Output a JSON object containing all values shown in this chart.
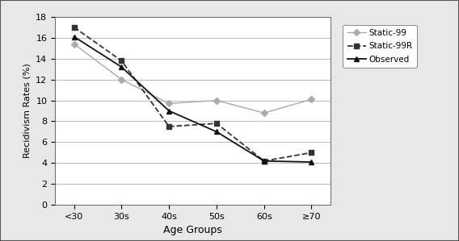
{
  "categories": [
    "<30",
    "30s",
    "40s",
    "50s",
    "60s",
    "≥70"
  ],
  "static99": [
    15.4,
    12.0,
    9.7,
    10.0,
    8.8,
    10.1
  ],
  "static99r": [
    17.0,
    13.8,
    7.5,
    7.8,
    4.2,
    5.0
  ],
  "observed": [
    16.1,
    13.2,
    9.0,
    7.0,
    4.2,
    4.1
  ],
  "ylabel": "Recidivism Rates (%)",
  "xlabel": "Age Groups",
  "ylim": [
    0,
    18
  ],
  "yticks": [
    0,
    2,
    4,
    6,
    8,
    10,
    12,
    14,
    16,
    18
  ],
  "legend_labels": [
    "Static-99",
    "Static-99R",
    "Observed"
  ],
  "static99_color": "#aaaaaa",
  "static99r_color": "#333333",
  "observed_color": "#111111",
  "fig_bg_color": "#e8e8e8",
  "plot_bg_color": "#ffffff",
  "grid_color": "#bbbbbb"
}
